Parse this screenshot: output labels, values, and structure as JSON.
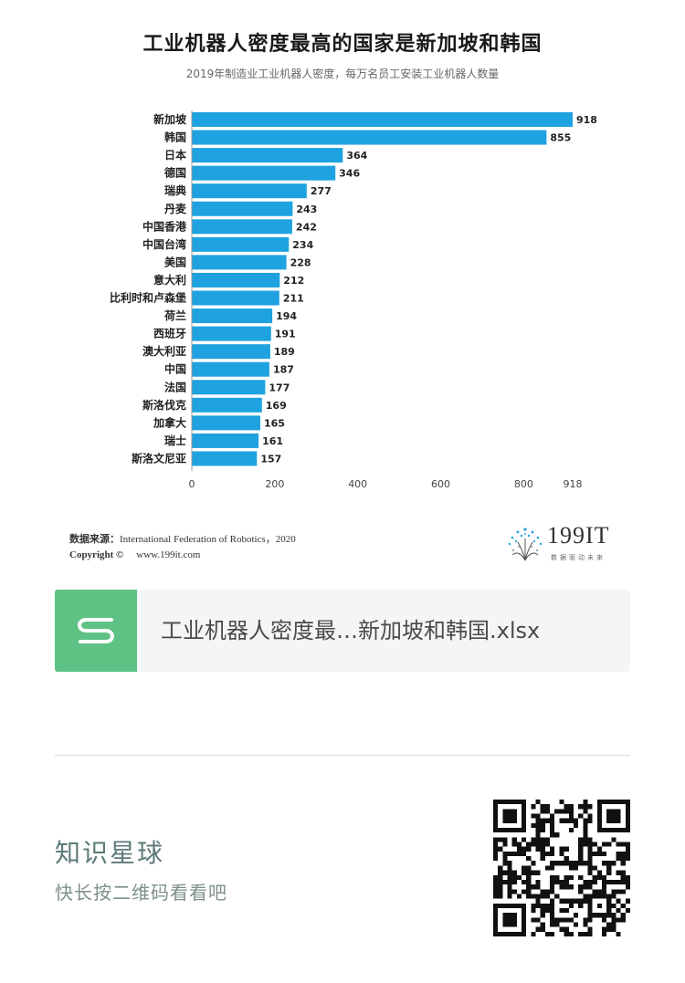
{
  "chart_data": {
    "type": "bar",
    "orientation": "horizontal",
    "title": "工业机器人密度最高的国家是新加坡和韩国",
    "subtitle": "2019年制造业工业机器人密度，每万名员工安装工业机器人数量",
    "categories": [
      "新加坡",
      "韩国",
      "日本",
      "德国",
      "瑞典",
      "丹麦",
      "中国香港",
      "中国台湾",
      "美国",
      "意大利",
      "比利时和卢森堡",
      "荷兰",
      "西班牙",
      "澳大利亚",
      "中国",
      "法国",
      "斯洛伐克",
      "加拿大",
      "瑞士",
      "斯洛文尼亚"
    ],
    "values": [
      918,
      855,
      364,
      346,
      277,
      243,
      242,
      234,
      228,
      212,
      211,
      194,
      191,
      189,
      187,
      177,
      169,
      165,
      161,
      157
    ],
    "xticks": [
      "0",
      "200",
      "400",
      "600",
      "800",
      "918"
    ],
    "xtick_values": [
      0,
      200,
      400,
      600,
      800,
      918
    ],
    "xlim": [
      0,
      918
    ],
    "bar_color": "#1ea3e0",
    "grid": false,
    "legend": "none"
  },
  "source": {
    "label": "数据来源：",
    "text": "International Federation of Robotics，2020"
  },
  "copyright": {
    "label": "Copyright ©",
    "url": "www.199it.com"
  },
  "brand": {
    "name": "199IT",
    "tagline": "数据驱动未来",
    "icon": "dandelion-logo-icon"
  },
  "file": {
    "name": "工业机器人密度最…新加坡和韩国.xlsx",
    "icon": "spreadsheet-s-icon",
    "icon_color": "#5ec285"
  },
  "promo": {
    "title": "知识星球",
    "subtitle": "快长按二维码看看吧",
    "qr_icon": "qr-code-icon"
  }
}
